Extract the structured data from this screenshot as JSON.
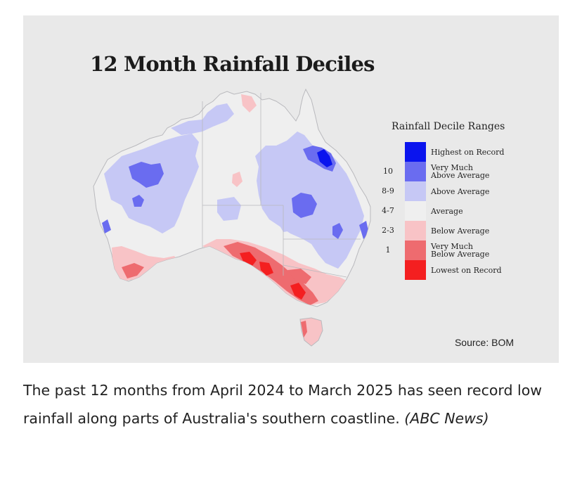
{
  "map": {
    "title": "12 Month Rainfall Deciles",
    "source": "Source: BOM"
  },
  "legend": {
    "title": "Rainfall Decile Ranges",
    "items": [
      {
        "range": "",
        "label": "Highest on Record",
        "color": "#0a14ee"
      },
      {
        "range": "10",
        "label": "Very Much\nAbove Average",
        "color": "#6a6cf0"
      },
      {
        "range": "8-9",
        "label": "Above Average",
        "color": "#c6c8f5"
      },
      {
        "range": "4-7",
        "label": "Average",
        "color": "#efefef"
      },
      {
        "range": "2-3",
        "label": "Below Average",
        "color": "#f8c3c6"
      },
      {
        "range": "1",
        "label": "Very Much\nBelow Average",
        "color": "#ee6b6f"
      },
      {
        "range": "",
        "label": "Lowest on Record",
        "color": "#f41f20"
      }
    ]
  },
  "caption": {
    "text": "The past 12 months from April 2024 to March 2025 has seen record low rainfall along parts of Australia's southern coastline.",
    "credit": "(ABC News)"
  }
}
